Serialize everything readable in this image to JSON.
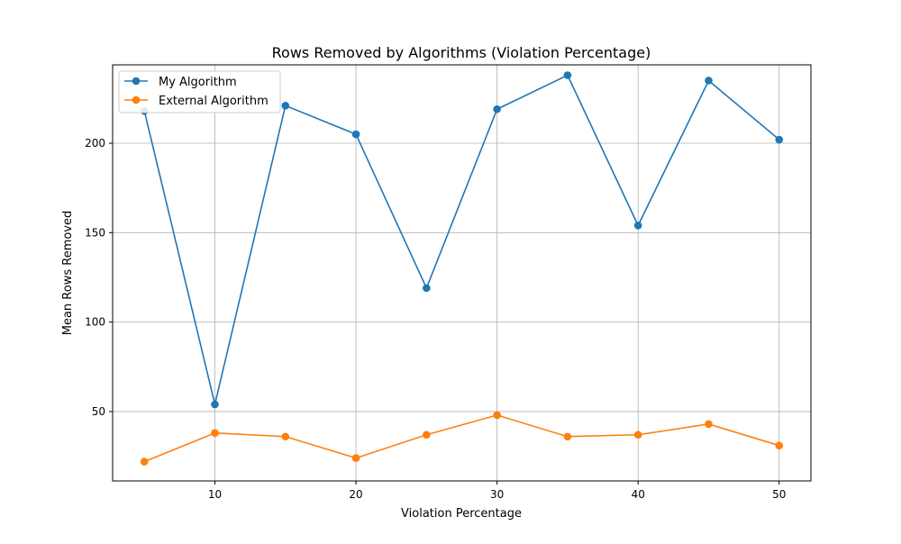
{
  "chart_data": {
    "type": "line",
    "title": "Rows Removed by Algorithms (Violation Percentage)",
    "xlabel": "Violation Percentage",
    "ylabel": "Mean Rows Removed",
    "x": [
      5,
      10,
      15,
      20,
      25,
      30,
      35,
      40,
      45,
      50
    ],
    "xlim": [
      2.75,
      52.25
    ],
    "ylim": [
      11.2,
      243.8
    ],
    "xticks": [
      10,
      20,
      30,
      40,
      50
    ],
    "yticks": [
      50,
      100,
      150,
      200
    ],
    "grid": true,
    "legend_position": "top-left",
    "series": [
      {
        "name": "My Algorithm",
        "color": "#1f77b4",
        "values": [
          218,
          54,
          221,
          205,
          119,
          219,
          238,
          154,
          235,
          202
        ]
      },
      {
        "name": "External Algorithm",
        "color": "#ff7f0e",
        "values": [
          22,
          38,
          36,
          24,
          37,
          48,
          36,
          37,
          43,
          31
        ]
      }
    ]
  }
}
